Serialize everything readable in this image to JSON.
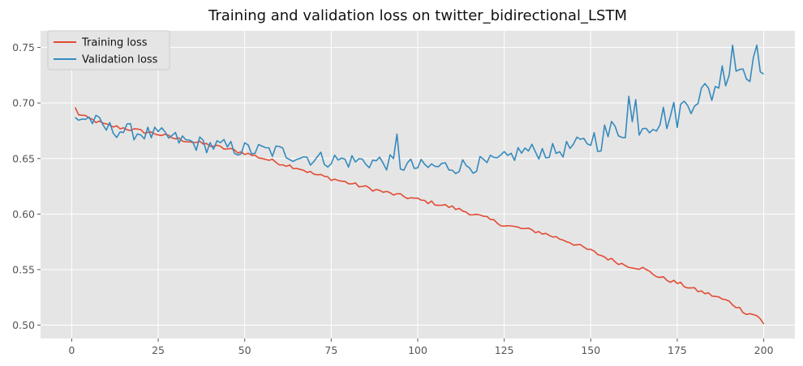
{
  "chart_data": {
    "type": "line",
    "title": "Training and validation loss on twitter_bidirectional_LSTM",
    "xlabel": "",
    "ylabel": "",
    "xlim": [
      -9,
      209
    ],
    "ylim": [
      0.488,
      0.765
    ],
    "xticks": [
      0,
      25,
      50,
      75,
      100,
      125,
      150,
      175,
      200
    ],
    "yticks": [
      0.5,
      0.55,
      0.6,
      0.65,
      0.7,
      0.75
    ],
    "grid": true,
    "legend": "top-left",
    "colors": {
      "plot_bg": "#e5e5e5",
      "grid": "#ffffff",
      "tick_text": "#555555",
      "tick_mark": "#555555"
    },
    "series": [
      {
        "name": "Training loss",
        "color": "#e24a33",
        "key_points": [
          [
            1,
            0.696
          ],
          [
            2,
            0.69
          ],
          [
            4,
            0.687
          ],
          [
            10,
            0.68
          ],
          [
            25,
            0.672
          ],
          [
            30,
            0.668
          ],
          [
            40,
            0.662
          ],
          [
            50,
            0.655
          ],
          [
            60,
            0.646
          ],
          [
            66,
            0.641
          ],
          [
            70,
            0.636
          ],
          [
            80,
            0.628
          ],
          [
            90,
            0.62
          ],
          [
            100,
            0.613
          ],
          [
            110,
            0.606
          ],
          [
            120,
            0.596
          ],
          [
            125,
            0.59
          ],
          [
            135,
            0.584
          ],
          [
            143,
            0.576
          ],
          [
            150,
            0.567
          ],
          [
            155,
            0.56
          ],
          [
            160,
            0.554
          ],
          [
            165,
            0.551
          ],
          [
            170,
            0.543
          ],
          [
            175,
            0.538
          ],
          [
            180,
            0.532
          ],
          [
            185,
            0.527
          ],
          [
            190,
            0.521
          ],
          [
            195,
            0.511
          ],
          [
            198,
            0.509
          ],
          [
            200,
            0.501
          ]
        ]
      },
      {
        "name": "Validation loss",
        "color": "#348abd",
        "key_points": [
          [
            1,
            0.687
          ],
          [
            5,
            0.686
          ],
          [
            10,
            0.677
          ],
          [
            25,
            0.671
          ],
          [
            35,
            0.664
          ],
          [
            50,
            0.658
          ],
          [
            60,
            0.656
          ],
          [
            70,
            0.65
          ],
          [
            80,
            0.648
          ],
          [
            90,
            0.647
          ],
          [
            100,
            0.642
          ],
          [
            110,
            0.643
          ],
          [
            120,
            0.645
          ],
          [
            125,
            0.649
          ],
          [
            130,
            0.657
          ],
          [
            140,
            0.656
          ],
          [
            150,
            0.666
          ],
          [
            155,
            0.672
          ],
          [
            160,
            0.68
          ],
          [
            170,
            0.686
          ],
          [
            175,
            0.69
          ],
          [
            180,
            0.707
          ],
          [
            185,
            0.71
          ],
          [
            188,
            0.726
          ],
          [
            190,
            0.731
          ],
          [
            195,
            0.733
          ],
          [
            200,
            0.726
          ]
        ]
      }
    ]
  }
}
